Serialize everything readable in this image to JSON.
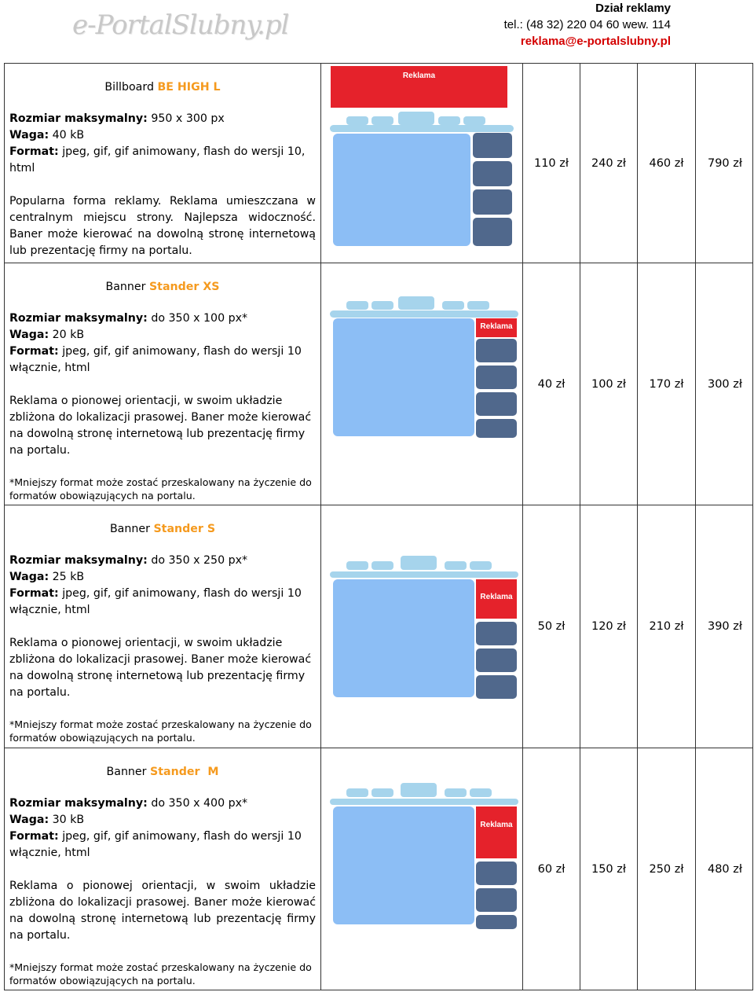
{
  "header": {
    "logo_text": "e-PortalSlubny.pl",
    "contact_title": "Dział reklamy",
    "contact_phone": "tel.: (48 32) 220 04 60 wew. 114",
    "contact_email": "reklama@e-portalslubny.pl"
  },
  "labels": {
    "size": "Rozmiar maksymalny:",
    "weight": "Waga:",
    "format": "Format:",
    "ad": "Reklama"
  },
  "rows": [
    {
      "title_prefix": "Billboard",
      "title_accent": "BE HIGH L",
      "size": " 950 x 300 px",
      "weight": " 40 kB",
      "format": " jpeg, gif, gif animowany, flash do wersji 10, html",
      "desc": "Popularna forma reklamy. Reklama umieszczana w centralnym miejscu strony. Najlepsza widoczność. Baner może kierować na dowolną stronę internetową lub prezentację firmy na portalu.",
      "note": "",
      "prices": [
        "110 zł",
        "240 zł",
        "460 zł",
        "790 zł"
      ]
    },
    {
      "title_prefix": "Banner",
      "title_accent": "Stander XS",
      "size": "  do 350 x 100 px*",
      "weight": " 20 kB",
      "format": " jpeg, gif, gif animowany, flash do wersji 10 włącznie, html",
      "desc": "Reklama o pionowej orientacji, w swoim układzie zbliżona do lokalizacji prasowej. Baner może kierować na dowolną stronę internetową lub prezentację firmy na portalu.",
      "note": "*Mniejszy format może zostać przeskalowany na życzenie do formatów obowiązujących na portalu.",
      "prices": [
        "40 zł",
        "100 zł",
        "170 zł",
        "300 zł"
      ]
    },
    {
      "title_prefix": "Banner",
      "title_accent": "Stander S",
      "size": " do 350 x 250 px*",
      "weight": " 25 kB",
      "format": " jpeg, gif, gif animowany, flash do wersji 10 włącznie, html",
      "desc": "Reklama o pionowej orientacji, w swoim układzie zbliżona do lokalizacji prasowej. Baner może kierować na dowolną stronę internetową lub prezentację firmy na portalu.",
      "note": "*Mniejszy format może zostać przeskalowany na życzenie do formatów obowiązujących na portalu.",
      "prices": [
        "50 zł",
        "120 zł",
        "210 zł",
        "390 zł"
      ]
    },
    {
      "title_prefix": "Banner",
      "title_accent": "Stander  M",
      "size": " do 350 x 400 px*",
      "weight": " 30 kB",
      "format": " jpeg, gif, gif animowany, flash do wersji 10 włącznie, html",
      "desc": "Reklama o pionowej orientacji, w swoim układzie zbliżona do lokalizacji prasowej. Baner może kierować na dowolną stronę internetową lub prezentację firmy na portalu.",
      "note": "*Mniejszy format może zostać przeskalowany na życzenie do formatów obowiązujących na portalu.",
      "prices": [
        "60 zł",
        "150 zł",
        "250 zł",
        "480 zł"
      ]
    }
  ],
  "colors": {
    "accent": "#f59a1e",
    "ad_red": "#e5222b",
    "content_blue": "#8cbef5",
    "tile_navy": "#50688c",
    "nav_light": "#a6d4ec"
  }
}
